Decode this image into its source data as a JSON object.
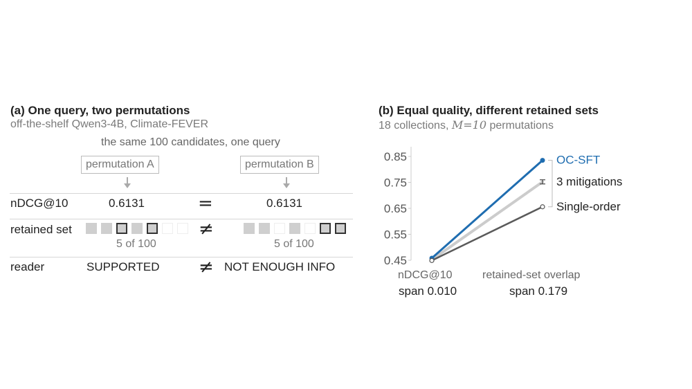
{
  "panel_a": {
    "title": "(a) One query, two permutations",
    "subtitle": "off-the-shelf Qwen3-4B, Climate-FEVER",
    "caption": "the same 100 candidates, one query",
    "perm_a_label": "permutation A",
    "perm_b_label": "permutation B",
    "rows": {
      "ndcg_label": "nDCG@10",
      "ndcg_a": "0.6131",
      "ndcg_b": "0.6131",
      "ndcg_sym": "=",
      "retained_label": "retained set",
      "retained_sym": "≠",
      "retained_a_count": "5 of 100",
      "retained_b_count": "5 of 100",
      "reader_label": "reader",
      "reader_a": "SUPPORTED",
      "reader_sym": "≠",
      "reader_b": "NOT ENOUGH INFO"
    },
    "retained_a_squares": [
      "gray",
      "gray",
      "bold",
      "gray",
      "bold",
      "empty",
      "empty"
    ],
    "retained_b_squares": [
      "gray",
      "gray",
      "empty",
      "gray",
      "empty",
      "bold",
      "bold"
    ]
  },
  "panel_b": {
    "title": "(b) Equal quality, different retained sets",
    "subtitle_prefix": "18 collections,",
    "subtitle_math": "M=10",
    "subtitle_suffix": "permutations",
    "x_left_label": "nDCG@10",
    "x_left_span": "span 0.010",
    "x_right_label": "retained-set overlap",
    "x_right_span": "span 0.179"
  },
  "chart_data": {
    "type": "line",
    "x": [
      "nDCG@10",
      "retained-set overlap"
    ],
    "ylim": [
      0.45,
      0.85
    ],
    "yticks": [
      0.45,
      0.55,
      0.65,
      0.75,
      0.85
    ],
    "ytick_labels": [
      "0.45",
      "0.55",
      "0.65",
      "0.75",
      "0.85"
    ],
    "series": [
      {
        "name": "OC-SFT",
        "values": [
          0.458,
          0.835
        ],
        "color": "#1f6db0",
        "marker": "filled"
      },
      {
        "name": "3 mitigations",
        "values": [
          0.452,
          0.752
        ],
        "color": "#cccccc",
        "marker": "errorbar",
        "err": 0.008
      },
      {
        "name": "Single-order",
        "values": [
          0.449,
          0.656
        ],
        "color": "#5a5a5a",
        "marker": "open"
      }
    ],
    "label_colors": {
      "OC-SFT": "#1f6db0",
      "3 mitigations": "#222222",
      "Single-order": "#222222"
    }
  }
}
